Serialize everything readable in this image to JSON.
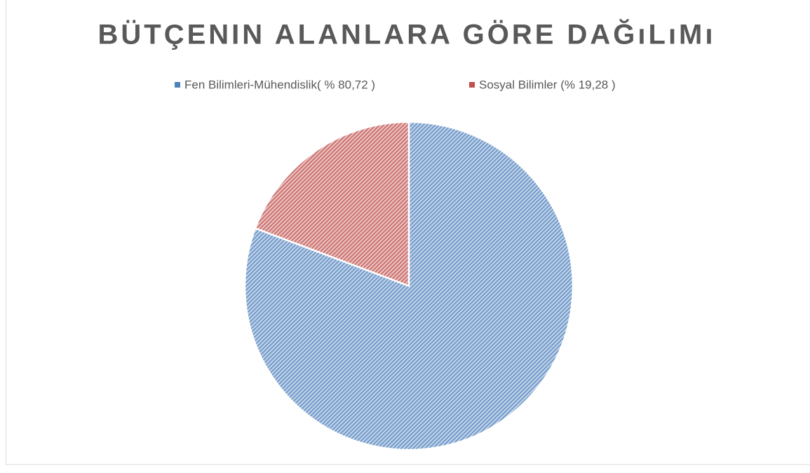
{
  "chart_data": {
    "type": "pie",
    "title": "BÜTÇENIN ALANLARA GÖRE DAĞıLıMı",
    "categories": [
      "Fen Bilimleri-Mühendislik( % 80,72 )",
      "Sosyal Bilimler (% 19,28 )"
    ],
    "values": [
      80.72,
      19.28
    ],
    "colors": [
      "#4f81bd",
      "#c0504d"
    ]
  }
}
